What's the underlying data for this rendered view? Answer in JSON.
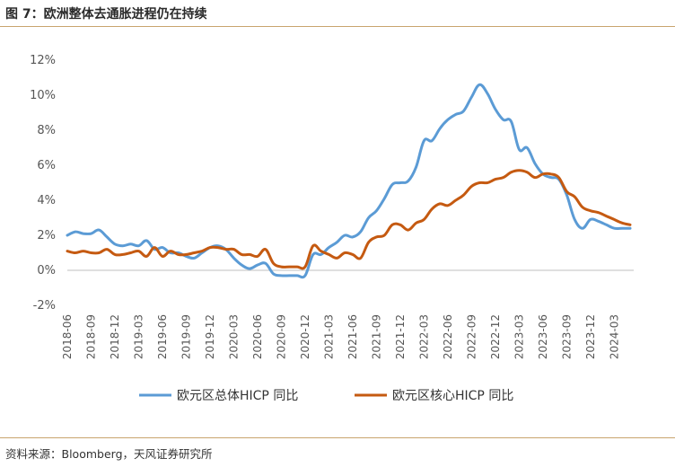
{
  "header": {
    "title": "图 7：欧洲整体去通胀进程仍在持续"
  },
  "footer": {
    "source": "资料来源：Bloomberg，天风证券研究所"
  },
  "chart_data": {
    "type": "line",
    "title": "图 7：欧洲整体去通胀进程仍在持续",
    "xlabel": "",
    "ylabel": "",
    "ylim": [
      -2,
      12
    ],
    "yticks": [
      -2,
      0,
      2,
      4,
      6,
      8,
      10,
      12
    ],
    "ytick_labels": [
      "-2%",
      "0%",
      "2%",
      "4%",
      "6%",
      "8%",
      "10%",
      "12%"
    ],
    "grid": false,
    "legend_position": "bottom",
    "categories": [
      "2018-06",
      "2018-07",
      "2018-08",
      "2018-09",
      "2018-10",
      "2018-11",
      "2018-12",
      "2019-01",
      "2019-02",
      "2019-03",
      "2019-04",
      "2019-05",
      "2019-06",
      "2019-07",
      "2019-08",
      "2019-09",
      "2019-10",
      "2019-11",
      "2019-12",
      "2020-01",
      "2020-02",
      "2020-03",
      "2020-04",
      "2020-05",
      "2020-06",
      "2020-07",
      "2020-08",
      "2020-09",
      "2020-10",
      "2020-11",
      "2020-12",
      "2021-01",
      "2021-02",
      "2021-03",
      "2021-04",
      "2021-05",
      "2021-06",
      "2021-07",
      "2021-08",
      "2021-09",
      "2021-10",
      "2021-11",
      "2021-12",
      "2022-01",
      "2022-02",
      "2022-03",
      "2022-04",
      "2022-05",
      "2022-06",
      "2022-07",
      "2022-08",
      "2022-09",
      "2022-10",
      "2022-11",
      "2022-12",
      "2023-01",
      "2023-02",
      "2023-03",
      "2023-04",
      "2023-05",
      "2023-06",
      "2023-07",
      "2023-08",
      "2023-09",
      "2023-10",
      "2023-11",
      "2023-12",
      "2024-01",
      "2024-02",
      "2024-03",
      "2024-04",
      "2024-05"
    ],
    "xtick_labels": [
      "2018-06",
      "2018-09",
      "2018-12",
      "2019-03",
      "2019-06",
      "2019-09",
      "2019-12",
      "2020-03",
      "2020-06",
      "2020-09",
      "2020-12",
      "2021-03",
      "2021-06",
      "2021-09",
      "2021-12",
      "2022-03",
      "2022-06",
      "2022-09",
      "2022-12",
      "2023-03",
      "2023-06",
      "2023-09",
      "2023-12",
      "2024-03"
    ],
    "series": [
      {
        "name": "欧元区总体HICP 同比",
        "color": "#5b9bd5",
        "values": [
          2.0,
          2.2,
          2.1,
          2.1,
          2.3,
          1.9,
          1.5,
          1.4,
          1.5,
          1.4,
          1.7,
          1.2,
          1.3,
          1.0,
          1.0,
          0.8,
          0.7,
          1.0,
          1.3,
          1.4,
          1.2,
          0.7,
          0.3,
          0.1,
          0.3,
          0.4,
          -0.2,
          -0.3,
          -0.3,
          -0.3,
          -0.3,
          0.9,
          0.9,
          1.3,
          1.6,
          2.0,
          1.9,
          2.2,
          3.0,
          3.4,
          4.1,
          4.9,
          5.0,
          5.1,
          5.9,
          7.4,
          7.4,
          8.1,
          8.6,
          8.9,
          9.1,
          9.9,
          10.6,
          10.1,
          9.2,
          8.6,
          8.5,
          6.9,
          7.0,
          6.1,
          5.5,
          5.3,
          5.2,
          4.3,
          2.9,
          2.4,
          2.9,
          2.8,
          2.6,
          2.4,
          2.4,
          2.4
        ]
      },
      {
        "name": "欧元区核心HICP 同比",
        "color": "#c55a11",
        "values": [
          1.1,
          1.0,
          1.1,
          1.0,
          1.0,
          1.2,
          0.9,
          0.9,
          1.0,
          1.1,
          0.8,
          1.3,
          0.8,
          1.1,
          0.9,
          0.9,
          1.0,
          1.1,
          1.3,
          1.3,
          1.2,
          1.2,
          0.9,
          0.9,
          0.8,
          1.2,
          0.4,
          0.2,
          0.2,
          0.2,
          0.2,
          1.4,
          1.1,
          0.9,
          0.7,
          1.0,
          0.9,
          0.7,
          1.6,
          1.9,
          2.0,
          2.6,
          2.6,
          2.3,
          2.7,
          2.9,
          3.5,
          3.8,
          3.7,
          4.0,
          4.3,
          4.8,
          5.0,
          5.0,
          5.2,
          5.3,
          5.6,
          5.7,
          5.6,
          5.3,
          5.5,
          5.5,
          5.3,
          4.5,
          4.2,
          3.6,
          3.4,
          3.3,
          3.1,
          2.9,
          2.7,
          2.6
        ]
      }
    ]
  }
}
